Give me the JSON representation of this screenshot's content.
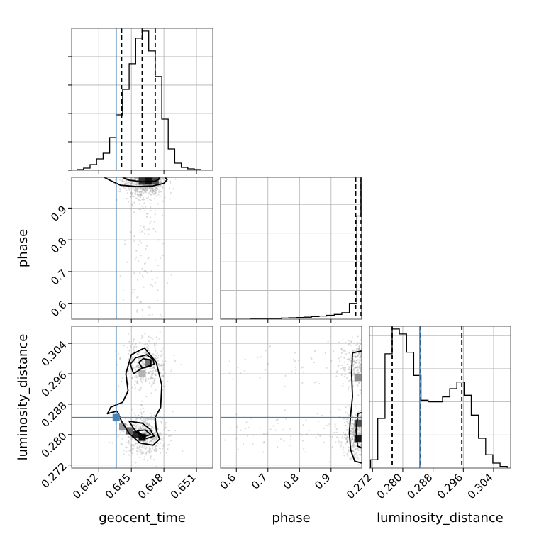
{
  "chart_data": {
    "type": "corner",
    "parameters": [
      "geocent_time",
      "phase",
      "luminosity_distance"
    ],
    "axis_labels": {
      "x": [
        "geocent_time",
        "phase",
        "luminosity_distance"
      ],
      "y": [
        "phase",
        "luminosity_distance"
      ]
    },
    "ranges": {
      "geocent_time": [
        0.6395,
        0.6525
      ],
      "phase": [
        0.55,
        0.997
      ],
      "luminosity_distance": [
        0.2712,
        0.3085
      ]
    },
    "ticks": {
      "geocent_time": [
        0.642,
        0.645,
        0.648,
        0.651
      ],
      "phase_x": [
        0.6,
        0.7,
        0.8,
        0.9
      ],
      "phase_y": [
        0.6,
        0.7,
        0.8,
        0.9
      ],
      "luminosity_distance": [
        0.272,
        0.28,
        0.288,
        0.296,
        0.304
      ]
    },
    "tick_labels": {
      "geocent_time": [
        "0.642",
        "0.645",
        "0.648",
        "0.651"
      ],
      "phase_x": [
        "0.6",
        "0.7",
        "0.8",
        "0.9"
      ],
      "phase_y": [
        "0.6",
        "0.7",
        "0.8",
        "0.9"
      ],
      "luminosity_distance": [
        "0.272",
        "0.280",
        "0.288",
        "0.296",
        "0.304"
      ]
    },
    "truths": {
      "geocent_time": 0.6436,
      "phase": null,
      "luminosity_distance": 0.2845
    },
    "quantiles": {
      "geocent_time": [
        0.6441,
        0.646,
        0.6472
      ],
      "phase": [
        0.978,
        0.995,
        0.996
      ],
      "luminosity_distance": [
        0.2772,
        0.2846,
        0.2956
      ]
    },
    "histograms": {
      "geocent_time": {
        "bins": [
          0.64,
          0.6406,
          0.6412,
          0.6418,
          0.6424,
          0.643,
          0.6436,
          0.6442,
          0.6448,
          0.6454,
          0.646,
          0.6466,
          0.6472,
          0.6478,
          0.6484,
          0.649,
          0.6496,
          0.6502,
          0.6508,
          0.6514
        ],
        "counts": [
          0.5,
          1.5,
          4,
          8,
          12,
          23,
          39,
          57,
          75,
          93,
          98,
          84,
          66,
          36,
          15,
          5,
          2,
          1,
          0.5
        ]
      },
      "phase": {
        "bins": [
          0.55,
          0.574,
          0.598,
          0.622,
          0.646,
          0.67,
          0.694,
          0.718,
          0.742,
          0.766,
          0.79,
          0.814,
          0.838,
          0.862,
          0.886,
          0.91,
          0.934,
          0.958,
          0.982,
          0.9945,
          0.997
        ],
        "counts": [
          0,
          0,
          0,
          0,
          0.3,
          0.3,
          0.5,
          0.6,
          0.8,
          1.0,
          1.2,
          1.4,
          1.8,
          2.2,
          2.7,
          3.3,
          4.5,
          11,
          72,
          97
        ]
      },
      "luminosity_distance": {
        "bins": [
          0.2715,
          0.2734,
          0.2753,
          0.2772,
          0.2791,
          0.281,
          0.2829,
          0.2848,
          0.2867,
          0.2886,
          0.2905,
          0.2924,
          0.2943,
          0.2962,
          0.2981,
          0.3,
          0.3019,
          0.3038,
          0.3057,
          0.3076
        ],
        "counts": [
          5,
          30,
          69,
          84,
          81,
          70,
          56,
          41,
          40,
          40,
          43,
          48,
          52,
          44,
          32,
          18,
          8,
          3,
          1
        ]
      }
    },
    "density_cells": [
      {
        "panel": "geocent_time-phase",
        "x": 0.646,
        "y": 0.985,
        "shade": 0.8
      },
      {
        "panel": "geocent_time-phase",
        "x": 0.6466,
        "y": 0.985,
        "shade": 0.95
      },
      {
        "panel": "geocent_time-phase",
        "x": 0.6472,
        "y": 0.985,
        "shade": 0.7
      },
      {
        "panel": "phase-luminosity_distance",
        "x": 0.985,
        "y": 0.279,
        "shade": 0.9
      },
      {
        "panel": "phase-luminosity_distance",
        "x": 0.985,
        "y": 0.283,
        "shade": 0.7
      },
      {
        "panel": "phase-luminosity_distance",
        "x": 0.985,
        "y": 0.295,
        "shade": 0.45
      },
      {
        "panel": "geocent_time-luminosity_distance",
        "x": 0.6454,
        "y": 0.28,
        "shade": 0.85
      },
      {
        "panel": "geocent_time-luminosity_distance",
        "x": 0.646,
        "y": 0.2793,
        "shade": 0.95
      },
      {
        "panel": "geocent_time-luminosity_distance",
        "x": 0.6448,
        "y": 0.281,
        "shade": 0.6
      },
      {
        "panel": "geocent_time-luminosity_distance",
        "x": 0.6442,
        "y": 0.282,
        "shade": 0.4
      },
      {
        "panel": "geocent_time-luminosity_distance",
        "x": 0.6466,
        "y": 0.299,
        "shade": 0.55
      },
      {
        "panel": "geocent_time-luminosity_distance",
        "x": 0.646,
        "y": 0.296,
        "shade": 0.3
      }
    ],
    "contours": [
      {
        "panel": "geocent_time-phase",
        "level": "outer",
        "points": [
          [
            0.6425,
            0.997
          ],
          [
            0.6432,
            0.985
          ],
          [
            0.644,
            0.972
          ],
          [
            0.6455,
            0.968
          ],
          [
            0.647,
            0.97
          ],
          [
            0.648,
            0.978
          ],
          [
            0.6483,
            0.99
          ],
          [
            0.6481,
            0.997
          ]
        ]
      },
      {
        "panel": "geocent_time-phase",
        "level": "inner",
        "points": [
          [
            0.6442,
            0.997
          ],
          [
            0.6448,
            0.988
          ],
          [
            0.646,
            0.983
          ],
          [
            0.6472,
            0.985
          ],
          [
            0.6476,
            0.992
          ],
          [
            0.6475,
            0.997
          ]
        ]
      },
      {
        "panel": "geocent_time-luminosity_distance",
        "level": "outer",
        "points": [
          [
            0.6437,
            0.2862
          ],
          [
            0.6441,
            0.2835
          ],
          [
            0.6448,
            0.2803
          ],
          [
            0.6458,
            0.2778
          ],
          [
            0.647,
            0.2772
          ],
          [
            0.6476,
            0.2788
          ],
          [
            0.6473,
            0.2812
          ],
          [
            0.6472,
            0.2845
          ],
          [
            0.6477,
            0.2872
          ],
          [
            0.6478,
            0.293
          ],
          [
            0.6473,
            0.299
          ],
          [
            0.6462,
            0.3028
          ],
          [
            0.645,
            0.301
          ],
          [
            0.6445,
            0.296
          ],
          [
            0.6447,
            0.2915
          ],
          [
            0.6442,
            0.2885
          ],
          [
            0.6431,
            0.2872
          ],
          [
            0.6428,
            0.2855
          ],
          [
            0.6437,
            0.2862
          ]
        ]
      },
      {
        "panel": "geocent_time-luminosity_distance",
        "level": "middle",
        "points": [
          [
            0.6448,
            0.2835
          ],
          [
            0.6454,
            0.2808
          ],
          [
            0.6464,
            0.279
          ],
          [
            0.6471,
            0.2796
          ],
          [
            0.6467,
            0.2815
          ],
          [
            0.646,
            0.283
          ],
          [
            0.6448,
            0.2835
          ]
        ]
      },
      {
        "panel": "geocent_time-luminosity_distance",
        "level": "inner",
        "points": [
          [
            0.6455,
            0.281
          ],
          [
            0.6462,
            0.2795
          ],
          [
            0.6468,
            0.28
          ],
          [
            0.6463,
            0.2812
          ],
          [
            0.6455,
            0.281
          ]
        ]
      },
      {
        "panel": "geocent_time-luminosity_distance",
        "level": "upper",
        "points": [
          [
            0.6452,
            0.296
          ],
          [
            0.646,
            0.2975
          ],
          [
            0.6471,
            0.2985
          ],
          [
            0.647,
            0.2998
          ],
          [
            0.6464,
            0.301
          ],
          [
            0.6454,
            0.3002
          ],
          [
            0.6449,
            0.2985
          ],
          [
            0.6452,
            0.296
          ]
        ]
      },
      {
        "panel": "geocent_time-luminosity_distance",
        "level": "upper-inner",
        "points": [
          [
            0.646,
            0.2975
          ],
          [
            0.6468,
            0.298
          ],
          [
            0.6468,
            0.2996
          ],
          [
            0.6461,
            0.3
          ],
          [
            0.6457,
            0.299
          ],
          [
            0.646,
            0.2975
          ]
        ]
      },
      {
        "panel": "phase-luminosity_distance",
        "level": "outer",
        "points": [
          [
            0.997,
            0.2725
          ],
          [
            0.975,
            0.273
          ],
          [
            0.962,
            0.276
          ],
          [
            0.958,
            0.2805
          ],
          [
            0.962,
            0.285
          ],
          [
            0.968,
            0.29
          ],
          [
            0.965,
            0.296
          ],
          [
            0.968,
            0.3015
          ],
          [
            0.997,
            0.302
          ]
        ]
      },
      {
        "panel": "phase-luminosity_distance",
        "level": "inner",
        "points": [
          [
            0.997,
            0.2765
          ],
          [
            0.984,
            0.277
          ],
          [
            0.979,
            0.281
          ],
          [
            0.985,
            0.2855
          ],
          [
            0.997,
            0.2858
          ]
        ]
      }
    ],
    "samples_note": "",
    "colors": {
      "truth": "#4682b4",
      "line": "#000000",
      "points": "#9a9a9a",
      "grid": "#b0b0b0"
    },
    "grid": true
  }
}
